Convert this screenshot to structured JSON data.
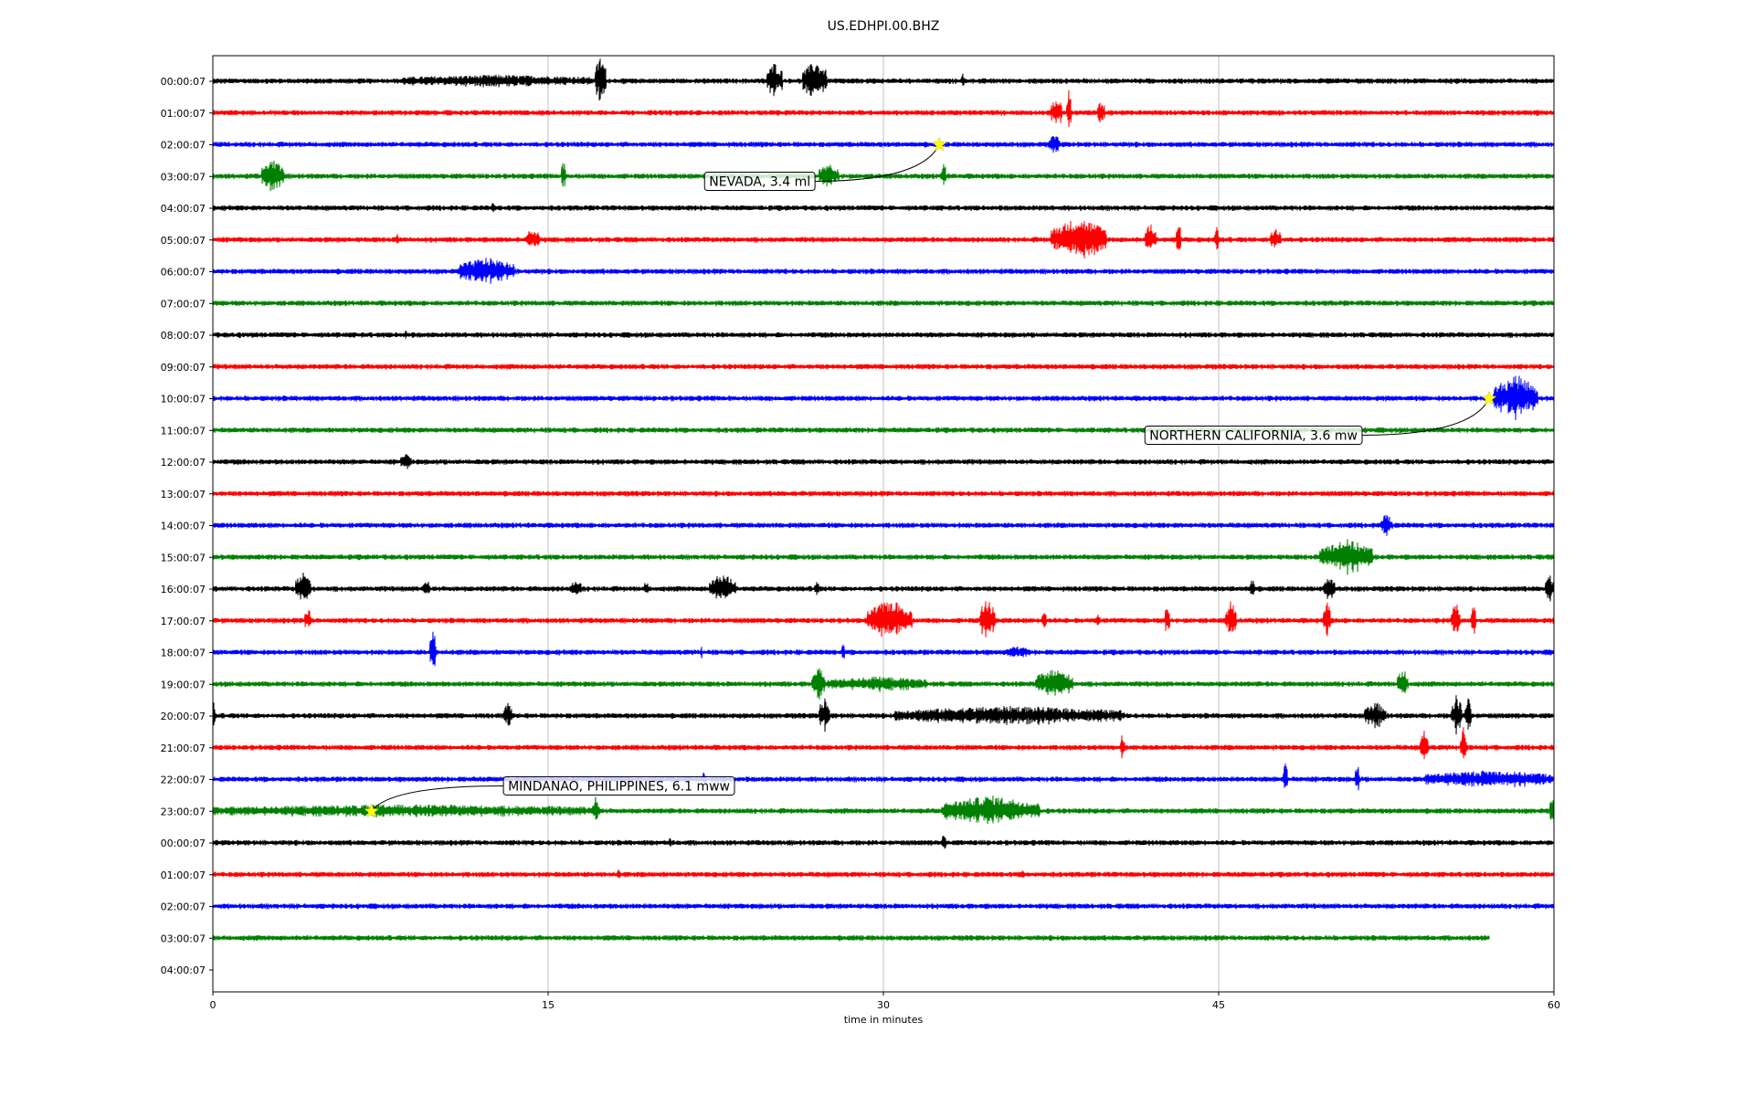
{
  "chart_data": {
    "type": "line",
    "title": "US.EDHPI.00.BHZ",
    "xlabel": "time in minutes",
    "xlim": [
      0,
      60
    ],
    "xticks": [
      0,
      15,
      30,
      45,
      60
    ],
    "xtick_labels": [
      "0",
      "15",
      "30",
      "45",
      "60"
    ],
    "grid": "vertical",
    "row_labels": [
      "00:00:07",
      "01:00:07",
      "02:00:07",
      "03:00:07",
      "04:00:07",
      "05:00:07",
      "06:00:07",
      "07:00:07",
      "08:00:07",
      "09:00:07",
      "10:00:07",
      "11:00:07",
      "12:00:07",
      "13:00:07",
      "14:00:07",
      "15:00:07",
      "16:00:07",
      "17:00:07",
      "18:00:07",
      "19:00:07",
      "20:00:07",
      "21:00:07",
      "22:00:07",
      "23:00:07",
      "00:00:07",
      "01:00:07",
      "02:00:07",
      "03:00:07",
      "04:00:07"
    ],
    "color_cycle": [
      "#000000",
      "#ff0000",
      "#0000ff",
      "#008000"
    ],
    "traces": [
      {
        "row": 0,
        "end": 60,
        "bursts": [
          [
            8.5,
            17,
            0.5
          ],
          [
            17.1,
            17.6,
            3.2
          ],
          [
            24.8,
            25.5,
            2.3
          ],
          [
            26.4,
            27.5,
            2.5
          ],
          [
            33.5,
            33.6,
            0.8
          ]
        ]
      },
      {
        "row": 1,
        "end": 60,
        "bursts": [
          [
            37.5,
            38.0,
            1.8
          ],
          [
            38.2,
            38.4,
            3.0
          ],
          [
            39.6,
            39.9,
            1.5
          ]
        ]
      },
      {
        "row": 2,
        "end": 60,
        "bursts": [
          [
            37.4,
            37.9,
            1.0
          ]
        ]
      },
      {
        "row": 3,
        "end": 60,
        "bursts": [
          [
            2.2,
            3.2,
            2.2
          ],
          [
            15.6,
            15.8,
            2.0
          ],
          [
            27.1,
            28.0,
            1.4
          ],
          [
            32.6,
            32.8,
            2.2
          ]
        ]
      },
      {
        "row": 4,
        "end": 60,
        "bursts": [
          [
            12.5,
            12.6,
            0.6
          ]
        ]
      },
      {
        "row": 5,
        "end": 60,
        "bursts": [
          [
            8.2,
            8.3,
            0.6
          ],
          [
            14.0,
            14.6,
            1.3
          ],
          [
            37.5,
            40.0,
            2.8
          ],
          [
            41.7,
            42.2,
            2.0
          ],
          [
            43.1,
            43.3,
            2.7
          ],
          [
            44.8,
            45.0,
            1.8
          ],
          [
            47.3,
            47.8,
            1.6
          ]
        ]
      },
      {
        "row": 6,
        "end": 60,
        "bursts": [
          [
            11.0,
            13.5,
            1.6
          ]
        ]
      },
      {
        "row": 7,
        "end": 60,
        "bursts": []
      },
      {
        "row": 8,
        "end": 60,
        "bursts": [
          [
            8.6,
            8.7,
            0.5
          ]
        ]
      },
      {
        "row": 9,
        "end": 60,
        "bursts": []
      },
      {
        "row": 10,
        "end": 60,
        "bursts": [
          [
            57.3,
            59.3,
            3.0
          ]
        ]
      },
      {
        "row": 11,
        "end": 60,
        "bursts": []
      },
      {
        "row": 12,
        "end": 60,
        "bursts": [
          [
            8.4,
            8.9,
            0.8
          ]
        ]
      },
      {
        "row": 13,
        "end": 60,
        "bursts": []
      },
      {
        "row": 14,
        "end": 60,
        "bursts": [
          [
            52.2,
            52.8,
            1.2
          ]
        ]
      },
      {
        "row": 15,
        "end": 60,
        "bursts": [
          [
            49.5,
            51.9,
            2.2
          ]
        ]
      },
      {
        "row": 16,
        "end": 60,
        "bursts": [
          [
            3.7,
            4.4,
            2.0
          ],
          [
            9.4,
            9.7,
            1.0
          ],
          [
            16.0,
            16.5,
            0.8
          ],
          [
            19.3,
            19.5,
            0.8
          ],
          [
            22.2,
            23.4,
            1.8
          ],
          [
            26.9,
            27.1,
            1.0
          ],
          [
            46.4,
            46.6,
            1.4
          ],
          [
            49.7,
            50.2,
            1.4
          ],
          [
            59.6,
            60.0,
            1.8
          ]
        ]
      },
      {
        "row": 17,
        "end": 60,
        "bursts": [
          [
            4.1,
            4.4,
            1.6
          ],
          [
            29.3,
            31.3,
            2.6
          ],
          [
            34.3,
            35.0,
            2.7
          ],
          [
            37.1,
            37.3,
            1.8
          ],
          [
            39.5,
            39.7,
            0.8
          ],
          [
            42.6,
            42.8,
            2.6
          ],
          [
            45.3,
            45.8,
            2.4
          ],
          [
            49.7,
            50.0,
            2.6
          ],
          [
            55.4,
            55.8,
            2.3
          ],
          [
            56.3,
            56.5,
            2.0
          ]
        ]
      },
      {
        "row": 18,
        "end": 60,
        "bursts": [
          [
            9.7,
            10.0,
            3.0
          ],
          [
            21.8,
            21.9,
            0.6
          ],
          [
            28.1,
            28.3,
            0.8
          ],
          [
            35.5,
            36.5,
            0.5
          ]
        ]
      },
      {
        "row": 19,
        "end": 60,
        "bursts": [
          [
            26.8,
            27.4,
            2.0
          ],
          [
            27.5,
            32.0,
            0.7
          ],
          [
            36.8,
            38.5,
            1.8
          ],
          [
            53.0,
            53.5,
            1.8
          ]
        ]
      },
      {
        "row": 20,
        "end": 60,
        "bursts": [
          [
            0.0,
            0.1,
            2.0
          ],
          [
            13.0,
            13.4,
            1.4
          ],
          [
            27.1,
            27.6,
            2.2
          ],
          [
            30.5,
            40.8,
            1.0
          ],
          [
            51.5,
            52.5,
            1.6
          ],
          [
            55.4,
            55.9,
            2.6
          ],
          [
            56.0,
            56.3,
            3.2
          ]
        ]
      },
      {
        "row": 21,
        "end": 60,
        "bursts": [
          [
            40.6,
            40.8,
            1.8
          ],
          [
            54.0,
            54.4,
            2.0
          ],
          [
            55.8,
            56.1,
            2.6
          ]
        ]
      },
      {
        "row": 22,
        "end": 60,
        "bursts": [
          [
            21.9,
            22.0,
            0.7
          ],
          [
            47.9,
            48.1,
            2.6
          ],
          [
            51.1,
            51.3,
            2.0
          ],
          [
            54.2,
            60.0,
            0.9
          ]
        ]
      },
      {
        "row": 23,
        "end": 60,
        "bursts": [
          [
            0.0,
            17.3,
            0.55
          ],
          [
            17.0,
            17.3,
            1.8
          ],
          [
            32.6,
            37.0,
            1.8
          ],
          [
            59.8,
            60.0,
            1.8
          ]
        ]
      },
      {
        "row": 24,
        "end": 60,
        "bursts": [
          [
            20.4,
            20.5,
            0.5
          ],
          [
            32.6,
            32.8,
            0.8
          ]
        ]
      },
      {
        "row": 25,
        "end": 60,
        "bursts": [
          [
            18.1,
            18.2,
            0.6
          ],
          [
            36.2,
            36.3,
            0.6
          ]
        ]
      },
      {
        "row": 26,
        "end": 60,
        "bursts": []
      },
      {
        "row": 27,
        "end": 57.1,
        "bursts": []
      }
    ],
    "events": [
      {
        "label": "NEVADA, 3.4 ml",
        "row": 2,
        "x": 32.5,
        "label_x": 22.0,
        "label_y_row": 3.15
      },
      {
        "label": "NORTHERN CALIFORNIA, 3.6 mw",
        "row": 10,
        "x": 57.1,
        "label_x": 41.7,
        "label_y_row": 11.15
      },
      {
        "label": "MINDANAO, PHILIPPINES, 6.1 mww",
        "row": 23,
        "x": 7.1,
        "label_x": 13.0,
        "label_y_row": 22.2
      }
    ]
  }
}
